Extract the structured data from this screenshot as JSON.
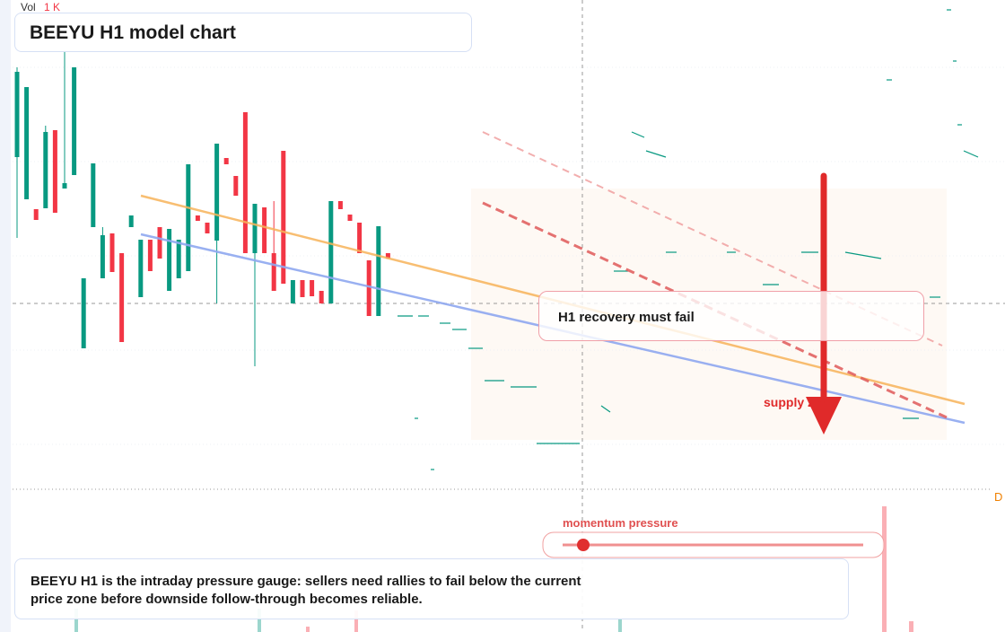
{
  "chart_data": {
    "type": "candlestick",
    "title": "BEEYU H1 model chart",
    "volume_label": "Vol",
    "volume_value": "1 K",
    "ylim": [
      0,
      100
    ],
    "colors": {
      "up": "#089981",
      "down": "#f23645"
    },
    "candles": [
      {
        "o": 77,
        "h": 97,
        "l": 59,
        "c": 96
      },
      {
        "o": 67.6,
        "h": 92.6,
        "l": 67.6,
        "c": 92.6
      },
      {
        "o": 65.4,
        "h": 65.4,
        "l": 63,
        "c": 63
      },
      {
        "o": 65.6,
        "h": 84,
        "l": 65.6,
        "c": 82.6
      },
      {
        "o": 83,
        "h": 83,
        "l": 64.6,
        "c": 64.6
      },
      {
        "o": 70,
        "h": 100.4,
        "l": 70,
        "c": 71.2
      },
      {
        "o": 73,
        "h": 97,
        "l": 73,
        "c": 97
      },
      {
        "o": 34.4,
        "h": 50,
        "l": 34.4,
        "c": 50
      },
      {
        "o": 61.4,
        "h": 75.6,
        "l": 61.4,
        "c": 75.6
      },
      {
        "o": 50,
        "h": 61.4,
        "l": 50,
        "c": 59.6
      },
      {
        "o": 60,
        "h": 60,
        "l": 51.4,
        "c": 51.4
      },
      {
        "o": 55.6,
        "h": 55.6,
        "l": 35.8,
        "c": 35.8
      },
      {
        "o": 61.4,
        "h": 64,
        "l": 61.4,
        "c": 64
      },
      {
        "o": 45.8,
        "h": 58.6,
        "l": 45.8,
        "c": 58.6
      },
      {
        "o": 58.6,
        "h": 58.6,
        "l": 51.6,
        "c": 51.6
      },
      {
        "o": 61.4,
        "h": 61.4,
        "l": 54.4,
        "c": 54.4
      },
      {
        "o": 47.2,
        "h": 61,
        "l": 47.2,
        "c": 61
      },
      {
        "o": 50,
        "h": 58.6,
        "l": 50,
        "c": 58.6
      },
      {
        "o": 51.6,
        "h": 75.4,
        "l": 51.6,
        "c": 75.4
      },
      {
        "o": 64,
        "h": 64,
        "l": 62.8,
        "c": 62.8
      },
      {
        "o": 62.4,
        "h": 62.4,
        "l": 60,
        "c": 60
      },
      {
        "o": 58.4,
        "h": 80,
        "l": 44.4,
        "c": 80
      },
      {
        "o": 76.8,
        "h": 76.8,
        "l": 75.4,
        "c": 75.4
      },
      {
        "o": 72.8,
        "h": 72.8,
        "l": 68.4,
        "c": 68.4
      },
      {
        "o": 87,
        "h": 87,
        "l": 55.6,
        "c": 55.6
      },
      {
        "o": 55.6,
        "h": 66.6,
        "l": 30.4,
        "c": 66.6
      },
      {
        "o": 65.8,
        "h": 65.8,
        "l": 55.6,
        "c": 55.6
      },
      {
        "o": 55.6,
        "h": 67.2,
        "l": 47.2,
        "c": 47.2
      },
      {
        "o": 78.4,
        "h": 78.4,
        "l": 48.8,
        "c": 48.8
      },
      {
        "o": 44.4,
        "h": 49.6,
        "l": 44.4,
        "c": 49.6
      },
      {
        "o": 49.6,
        "h": 49.6,
        "l": 45.8,
        "c": 45.8
      },
      {
        "o": 49.6,
        "h": 49.6,
        "l": 46,
        "c": 46
      },
      {
        "o": 47.2,
        "h": 47.2,
        "l": 44.4,
        "c": 44.4
      },
      {
        "o": 44.4,
        "h": 67.2,
        "l": 44.4,
        "c": 67.2
      },
      {
        "o": 67.2,
        "h": 67.2,
        "l": 65.4,
        "c": 65.4
      },
      {
        "o": 64.2,
        "h": 64.2,
        "l": 62.8,
        "c": 62.8
      },
      {
        "o": 62.4,
        "h": 62.4,
        "l": 55.6,
        "c": 55.6
      },
      {
        "o": 54,
        "h": 54,
        "l": 41.6,
        "c": 41.6
      },
      {
        "o": 41.6,
        "h": 61.6,
        "l": 41.6,
        "c": 61.6
      },
      {
        "o": 55.6,
        "h": 55.6,
        "l": 54.4,
        "c": 54.4
      }
    ],
    "annotations": {
      "callout": "H1 recovery must fail",
      "zone": "supply zone",
      "slider": "momentum pressure",
      "note": "BEEYU H1 is the intraday pressure gauge: sellers need rallies to fail below the current price zone before downside follow-through becomes reliable.",
      "badge": "D"
    }
  }
}
